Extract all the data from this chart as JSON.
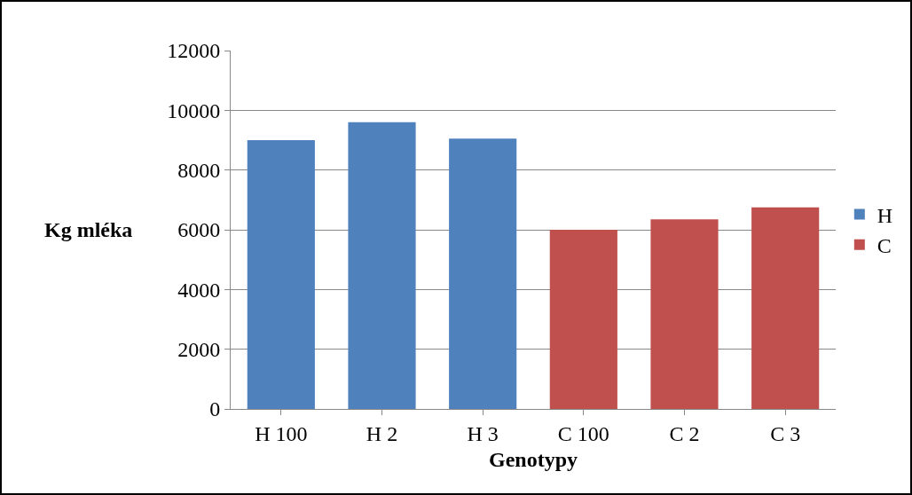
{
  "chart_data": {
    "type": "bar",
    "xlabel": "Genotypy",
    "ylabel": "Kg mléka",
    "categories": [
      "H 100",
      "H 2",
      "H 3",
      "C 100",
      "C 2",
      "C 3"
    ],
    "series": [
      {
        "name": "H",
        "color": "#4f81bd",
        "values": [
          9000,
          9600,
          9050,
          null,
          null,
          null
        ]
      },
      {
        "name": "C",
        "color": "#c0504d",
        "values": [
          null,
          null,
          null,
          6000,
          6350,
          6750
        ]
      }
    ],
    "ylim": [
      0,
      12000
    ],
    "yticks": [
      0,
      2000,
      4000,
      6000,
      8000,
      10000,
      12000
    ],
    "grid": "y",
    "legend": "right"
  }
}
